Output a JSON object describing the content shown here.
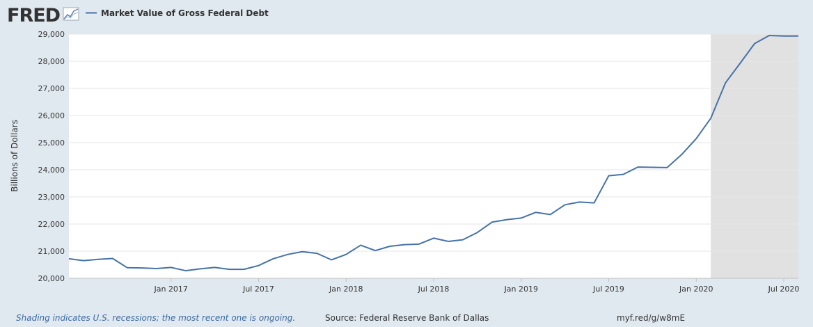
{
  "brand": "FRED",
  "footer": {
    "note": "Shading indicates U.S. recessions; the most recent one is ongoing.",
    "source": "Source: Federal Reserve Bank of Dallas",
    "link": "myf.red/g/w8mE"
  },
  "colors": {
    "line": "#4572a7",
    "recession": "#e1e1e1",
    "background": "#e1e9f0",
    "brand": "#333333"
  },
  "chart_data": {
    "type": "line",
    "title": "Market Value of Gross Federal Debt",
    "xlabel": "",
    "ylabel": "Billions of Dollars",
    "ylim": [
      20000,
      29000
    ],
    "yticks": [
      20000,
      21000,
      22000,
      23000,
      24000,
      25000,
      26000,
      27000,
      28000,
      29000
    ],
    "ytick_labels": [
      "20,000",
      "21,000",
      "22,000",
      "23,000",
      "24,000",
      "25,000",
      "26,000",
      "27,000",
      "28,000",
      "29,000"
    ],
    "xlim": [
      "2016-06",
      "2020-08"
    ],
    "xticks": [
      "2017-01",
      "2017-07",
      "2018-01",
      "2018-07",
      "2019-01",
      "2019-07",
      "2020-01",
      "2020-07"
    ],
    "xtick_labels": [
      "Jan 2017",
      "Jul 2017",
      "Jan 2018",
      "Jul 2018",
      "Jan 2019",
      "Jul 2019",
      "Jan 2020",
      "Jul 2020"
    ],
    "grid": true,
    "legend": [
      "Market Value of Gross Federal Debt"
    ],
    "legend_position": "top-left",
    "recessions": [
      {
        "start": "2020-02",
        "end": "2020-08"
      }
    ],
    "series": [
      {
        "name": "Market Value of Gross Federal Debt",
        "x": [
          "2016-06",
          "2016-07",
          "2016-08",
          "2016-09",
          "2016-10",
          "2016-11",
          "2016-12",
          "2017-01",
          "2017-02",
          "2017-03",
          "2017-04",
          "2017-05",
          "2017-06",
          "2017-07",
          "2017-08",
          "2017-09",
          "2017-10",
          "2017-11",
          "2017-12",
          "2018-01",
          "2018-02",
          "2018-03",
          "2018-04",
          "2018-05",
          "2018-06",
          "2018-07",
          "2018-08",
          "2018-09",
          "2018-10",
          "2018-11",
          "2018-12",
          "2019-01",
          "2019-02",
          "2019-03",
          "2019-04",
          "2019-05",
          "2019-06",
          "2019-07",
          "2019-08",
          "2019-09",
          "2019-10",
          "2019-11",
          "2019-12",
          "2020-01",
          "2020-02",
          "2020-03",
          "2020-04",
          "2020-05",
          "2020-06",
          "2020-07",
          "2020-08"
        ],
        "values": [
          20720,
          20650,
          20700,
          20730,
          20390,
          20380,
          20360,
          20400,
          20280,
          20350,
          20400,
          20330,
          20330,
          20470,
          20720,
          20880,
          20980,
          20920,
          20680,
          20880,
          21220,
          21020,
          21180,
          21240,
          21260,
          21480,
          21360,
          21420,
          21690,
          22070,
          22160,
          22220,
          22430,
          22350,
          22710,
          22810,
          22780,
          23780,
          23830,
          24100,
          24090,
          24080,
          24560,
          25150,
          25900,
          27200,
          27920,
          28650,
          28950,
          28930,
          28930
        ]
      }
    ]
  }
}
